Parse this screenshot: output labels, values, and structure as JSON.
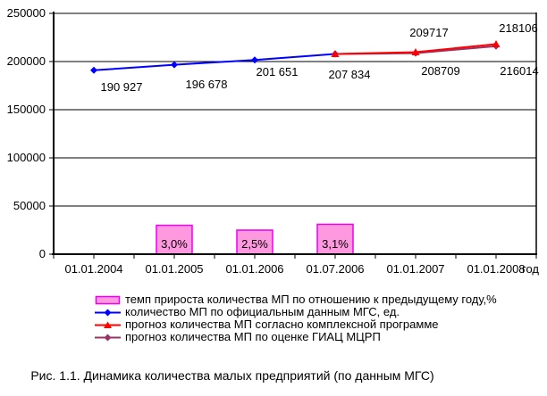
{
  "chart_data": {
    "type": "combo-bar-line",
    "categories": [
      "01.01.2004",
      "01.01.2005",
      "01.01.2006",
      "01.07.2006",
      "01.01.2007",
      "01.01.2008"
    ],
    "x_axis_unit": "год",
    "y_axis": {
      "min": 0,
      "max": 250000,
      "tick_labels": [
        "250000",
        "200000",
        "150000",
        "100000",
        "50000",
        "0"
      ]
    },
    "secondary_axis": {
      "min": 0,
      "max": 25,
      "visible": false
    },
    "grid": "horizontal",
    "legend_position": "bottom",
    "series": [
      {
        "name": "темп прироста количества МП по отношению к предыдущему году,%",
        "type": "bar",
        "color": "#FF99DF",
        "border_color": "#EE00EE",
        "axis": "secondary",
        "values": [
          null,
          3.0,
          2.5,
          3.1,
          null,
          null
        ],
        "value_labels": [
          null,
          "3,0%",
          "2,5%",
          "3,1%",
          null,
          null
        ]
      },
      {
        "name": "количество МП по официальным данным МГС, ед.",
        "type": "line",
        "marker": "diamond",
        "color": "#0000FF",
        "axis": "primary",
        "values": [
          190927,
          196678,
          201651,
          207834,
          null,
          null
        ],
        "value_labels": [
          "190 927",
          "196 678",
          "201 651",
          "207 834",
          null,
          null
        ]
      },
      {
        "name": "прогноз количества МП согласно комплексной программе",
        "type": "line",
        "marker": "triangle",
        "color": "#FF0000",
        "axis": "primary",
        "values": [
          null,
          null,
          null,
          207834,
          209717,
          218106
        ],
        "value_labels": [
          null,
          null,
          null,
          null,
          "209717",
          "218106"
        ]
      },
      {
        "name": "прогноз количества МП по оценке ГИАЦ МЦРП",
        "type": "line",
        "marker": "diamond",
        "color": "#993366",
        "axis": "primary",
        "values": [
          null,
          null,
          null,
          207834,
          208709,
          216014
        ],
        "value_labels": [
          null,
          null,
          null,
          null,
          "208709",
          "216014"
        ]
      }
    ],
    "caption": "Рис. 1.1. Динамика количества малых предприятий (по данным МГС)"
  }
}
